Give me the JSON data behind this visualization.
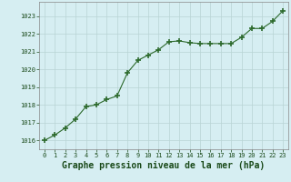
{
  "x": [
    0,
    1,
    2,
    3,
    4,
    5,
    6,
    7,
    8,
    9,
    10,
    11,
    12,
    13,
    14,
    15,
    16,
    17,
    18,
    19,
    20,
    21,
    22,
    23
  ],
  "y": [
    1016.0,
    1016.3,
    1016.7,
    1017.2,
    1017.9,
    1018.0,
    1018.3,
    1018.5,
    1019.8,
    1020.5,
    1020.8,
    1021.1,
    1021.55,
    1021.6,
    1021.5,
    1021.45,
    1021.45,
    1021.45,
    1021.45,
    1021.8,
    1022.3,
    1022.3,
    1022.7,
    1023.3
  ],
  "line_color": "#2d6a2d",
  "marker": "+",
  "marker_size": 4,
  "marker_lw": 1.2,
  "bg_color": "#d6eef2",
  "grid_color": "#b8d4d4",
  "xlabel": "Graphe pression niveau de la mer (hPa)",
  "xlabel_fontsize": 7,
  "xlabel_color": "#1a4a1a",
  "tick_color": "#1a4a1a",
  "tick_fontsize": 5,
  "ylim": [
    1015.5,
    1023.8
  ],
  "xlim": [
    -0.5,
    23.5
  ],
  "yticks": [
    1016,
    1017,
    1018,
    1019,
    1020,
    1021,
    1022,
    1023
  ],
  "xticks": [
    0,
    1,
    2,
    3,
    4,
    5,
    6,
    7,
    8,
    9,
    10,
    11,
    12,
    13,
    14,
    15,
    16,
    17,
    18,
    19,
    20,
    21,
    22,
    23
  ]
}
